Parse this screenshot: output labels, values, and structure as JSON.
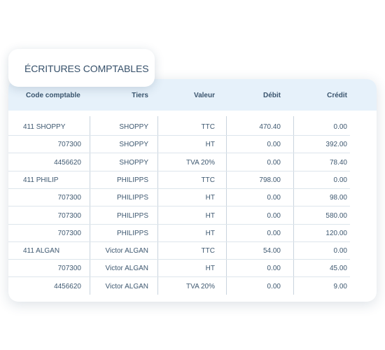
{
  "title": "ÉCRITURES COMPTABLES",
  "columns": {
    "code": "Code comptable",
    "tiers": "Tiers",
    "valeur": "Valeur",
    "debit": "Débit",
    "credit": "Crédit"
  },
  "rows": [
    {
      "code": "411 SHOPPY",
      "tiers": "SHOPPY",
      "valeur": "TTC",
      "debit": "470.40",
      "credit": "0.00"
    },
    {
      "code": "707300",
      "tiers": "SHOPPY",
      "valeur": "HT",
      "debit": "0.00",
      "credit": "392.00"
    },
    {
      "code": "4456620",
      "tiers": "SHOPPY",
      "valeur": "TVA 20%",
      "debit": "0.00",
      "credit": "78.40"
    },
    {
      "code": "411 PHILIP",
      "tiers": "PHILIPPS",
      "valeur": "TTC",
      "debit": "798.00",
      "credit": "0.00"
    },
    {
      "code": "707300",
      "tiers": "PHILIPPS",
      "valeur": "HT",
      "debit": "0.00",
      "credit": "98.00"
    },
    {
      "code": "707300",
      "tiers": "PHILIPPS",
      "valeur": "HT",
      "debit": "0.00",
      "credit": "580.00"
    },
    {
      "code": "707300",
      "tiers": "PHILIPPS",
      "valeur": "HT",
      "debit": "0.00",
      "credit": "120.00"
    },
    {
      "code": "411 ALGAN",
      "tiers": "Victor ALGAN",
      "valeur": "TTC",
      "debit": "54.00",
      "credit": "0.00"
    },
    {
      "code": "707300",
      "tiers": "Victor ALGAN",
      "valeur": "HT",
      "debit": "0.00",
      "credit": "45.00"
    },
    {
      "code": "4456620",
      "tiers": "Victor ALGAN",
      "valeur": "TVA 20%",
      "debit": "0.00",
      "credit": "9.00"
    }
  ]
}
